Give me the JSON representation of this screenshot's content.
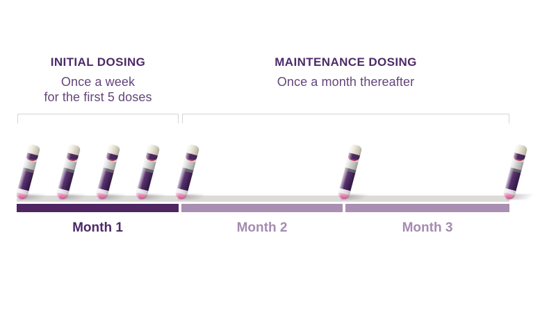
{
  "sections": {
    "initial": {
      "title": "INITIAL DOSING",
      "subtitle_line1": "Once a week",
      "subtitle_line2": "for the first 5 doses"
    },
    "maintenance": {
      "title": "MAINTENANCE DOSING",
      "subtitle": "Once a month thereafter"
    }
  },
  "timeline": {
    "months": [
      {
        "label": "Month 1",
        "style": "dark",
        "doses": 5
      },
      {
        "label": "Month 2",
        "style": "light",
        "doses": 1
      },
      {
        "label": "Month 3",
        "style": "light",
        "doses": 1
      }
    ],
    "dose_markers": [
      {
        "id": 1,
        "section": "initial",
        "x_pct": 0.8
      },
      {
        "id": 2,
        "section": "initial",
        "x_pct": 9.0
      },
      {
        "id": 3,
        "section": "initial",
        "x_pct": 17.1
      },
      {
        "id": 4,
        "section": "initial",
        "x_pct": 25.1
      },
      {
        "id": 5,
        "section": "initial",
        "x_pct": 33.1
      },
      {
        "id": 6,
        "section": "maintenance",
        "x_pct": 66.2
      },
      {
        "id": 7,
        "section": "maintenance",
        "x_pct": 99.7
      }
    ]
  },
  "icons": {
    "dose_marker": "injection-pen-icon"
  },
  "colors": {
    "heading": "#4d2a68",
    "subtitle": "#64457a",
    "bar_month1": "#4f2562",
    "bar_month2_3": "#a98fb2",
    "month1_label": "#4d2a68",
    "month2_3_label": "#a48bb0",
    "platform": "#dcdbd8",
    "bracket": "#d8d5d2",
    "pen_cap": "#ece7da",
    "pen_band": "#4f2a63",
    "pen_red_line": "#c2415a",
    "pen_silver": "#d0d0d0",
    "pen_ring": "#6d6a6e",
    "pen_barrel": "#4a2760",
    "pen_white_band": "#eceaec",
    "pen_tip": "#e87fae"
  }
}
